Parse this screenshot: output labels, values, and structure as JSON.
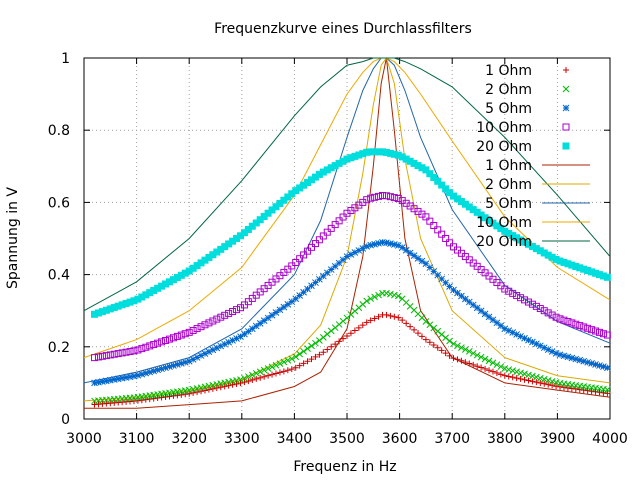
{
  "chart_data": {
    "type": "line",
    "title": "Frequenzkurve eines Durchlassfilters",
    "xlabel": "Frequenz in Hz",
    "ylabel": "Spannung in V",
    "xlim": [
      3000,
      4000
    ],
    "ylim": [
      0,
      1
    ],
    "xticks": [
      "3000",
      "3100",
      "3200",
      "3300",
      "3400",
      "3500",
      "3600",
      "3700",
      "3800",
      "3900",
      "4000"
    ],
    "yticks": [
      "0",
      "0.2",
      "0.4",
      "0.6",
      "0.8",
      "1"
    ],
    "grid": true,
    "legend_position": "top-right",
    "measured_series": [
      {
        "name": "1 Ohm",
        "marker": "plus",
        "color": "#cc0000",
        "x": [
          3020,
          3100,
          3200,
          3300,
          3400,
          3450,
          3500,
          3540,
          3570,
          3600,
          3650,
          3700,
          3800,
          3900,
          4000
        ],
        "y": [
          0.04,
          0.05,
          0.07,
          0.1,
          0.14,
          0.18,
          0.23,
          0.27,
          0.29,
          0.28,
          0.22,
          0.17,
          0.12,
          0.09,
          0.07
        ]
      },
      {
        "name": "2 Ohm",
        "marker": "cross",
        "color": "#00bb00",
        "x": [
          3020,
          3100,
          3200,
          3300,
          3400,
          3450,
          3500,
          3540,
          3570,
          3600,
          3650,
          3700,
          3800,
          3900,
          4000
        ],
        "y": [
          0.05,
          0.06,
          0.08,
          0.11,
          0.17,
          0.22,
          0.28,
          0.33,
          0.35,
          0.34,
          0.27,
          0.21,
          0.14,
          0.1,
          0.08
        ]
      },
      {
        "name": "5 Ohm",
        "marker": "star",
        "color": "#0066cc",
        "x": [
          3020,
          3100,
          3200,
          3300,
          3400,
          3450,
          3500,
          3540,
          3570,
          3600,
          3650,
          3700,
          3800,
          3900,
          4000
        ],
        "y": [
          0.1,
          0.12,
          0.16,
          0.23,
          0.33,
          0.39,
          0.45,
          0.48,
          0.49,
          0.48,
          0.43,
          0.36,
          0.25,
          0.18,
          0.14
        ]
      },
      {
        "name": "10 Ohm",
        "marker": "open-square",
        "color": "#aa00cc",
        "x": [
          3020,
          3100,
          3200,
          3300,
          3400,
          3450,
          3500,
          3540,
          3570,
          3600,
          3650,
          3700,
          3800,
          3900,
          4000
        ],
        "y": [
          0.17,
          0.19,
          0.24,
          0.31,
          0.43,
          0.5,
          0.57,
          0.61,
          0.62,
          0.61,
          0.56,
          0.48,
          0.36,
          0.28,
          0.23
        ]
      },
      {
        "name": "20 Ohm",
        "marker": "filled-square",
        "color": "#00dddd",
        "x": [
          3020,
          3100,
          3200,
          3300,
          3400,
          3450,
          3500,
          3540,
          3570,
          3600,
          3650,
          3700,
          3800,
          3900,
          4000
        ],
        "y": [
          0.29,
          0.33,
          0.41,
          0.51,
          0.63,
          0.68,
          0.72,
          0.74,
          0.74,
          0.73,
          0.69,
          0.62,
          0.52,
          0.44,
          0.39
        ]
      }
    ],
    "theory_series": [
      {
        "name": "1 Ohm",
        "color": "#aa2200",
        "x": [
          3000,
          3100,
          3200,
          3300,
          3400,
          3450,
          3500,
          3530,
          3550,
          3565,
          3575,
          3590,
          3610,
          3640,
          3700,
          3800,
          3900,
          4000
        ],
        "y": [
          0.03,
          0.03,
          0.04,
          0.05,
          0.09,
          0.13,
          0.25,
          0.45,
          0.7,
          0.93,
          1.0,
          0.8,
          0.5,
          0.3,
          0.17,
          0.1,
          0.08,
          0.06
        ]
      },
      {
        "name": "2 Ohm",
        "color": "#ddaa00",
        "x": [
          3000,
          3100,
          3200,
          3300,
          3400,
          3450,
          3500,
          3530,
          3550,
          3565,
          3575,
          3590,
          3610,
          3640,
          3700,
          3800,
          3900,
          4000
        ],
        "y": [
          0.05,
          0.06,
          0.08,
          0.11,
          0.18,
          0.26,
          0.45,
          0.68,
          0.87,
          0.98,
          1.0,
          0.93,
          0.72,
          0.5,
          0.3,
          0.17,
          0.12,
          0.1
        ]
      },
      {
        "name": "5 Ohm",
        "color": "#2266aa",
        "x": [
          3000,
          3100,
          3200,
          3300,
          3400,
          3450,
          3500,
          3530,
          3550,
          3565,
          3575,
          3590,
          3610,
          3640,
          3700,
          3800,
          3900,
          4000
        ],
        "y": [
          0.1,
          0.13,
          0.17,
          0.25,
          0.4,
          0.55,
          0.78,
          0.91,
          0.97,
          1.0,
          1.0,
          0.98,
          0.91,
          0.78,
          0.58,
          0.37,
          0.27,
          0.21
        ]
      },
      {
        "name": "10 Ohm",
        "color": "#eeaa00",
        "x": [
          3000,
          3100,
          3200,
          3300,
          3400,
          3450,
          3500,
          3530,
          3550,
          3565,
          3575,
          3590,
          3610,
          3640,
          3700,
          3800,
          3900,
          4000
        ],
        "y": [
          0.17,
          0.22,
          0.3,
          0.42,
          0.62,
          0.76,
          0.9,
          0.96,
          0.99,
          1.0,
          1.0,
          0.99,
          0.96,
          0.9,
          0.77,
          0.56,
          0.42,
          0.33
        ]
      },
      {
        "name": "20 Ohm",
        "color": "#006644",
        "x": [
          3000,
          3100,
          3200,
          3300,
          3400,
          3450,
          3500,
          3530,
          3550,
          3565,
          3575,
          3590,
          3610,
          3640,
          3700,
          3800,
          3900,
          4000
        ],
        "y": [
          0.3,
          0.38,
          0.5,
          0.66,
          0.84,
          0.92,
          0.98,
          0.99,
          1.0,
          1.0,
          1.0,
          1.0,
          0.99,
          0.97,
          0.92,
          0.78,
          0.62,
          0.45
        ]
      }
    ]
  }
}
